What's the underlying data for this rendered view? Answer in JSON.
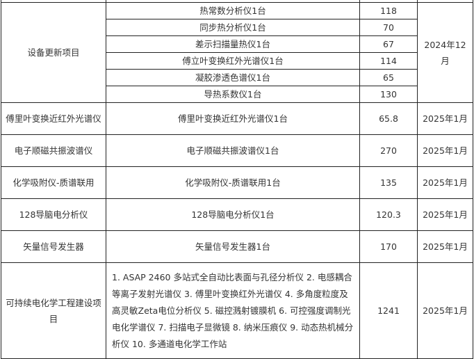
{
  "group1": {
    "project": "设备更新项目",
    "date": "2024年12月",
    "items": [
      {
        "name": "热常数分析仪1台",
        "amount": "118"
      },
      {
        "name": "同步热分析仪1台",
        "amount": "70"
      },
      {
        "name": "差示扫描量热仪1台",
        "amount": "67"
      },
      {
        "name": "傅立叶变换红外光谱仪1台",
        "amount": "114"
      },
      {
        "name": "凝胶渗透色谱仪1台",
        "amount": "65"
      },
      {
        "name": "导热系数仪1台",
        "amount": "130"
      }
    ]
  },
  "rows": [
    {
      "project": "傅里叶变换近红外光谱仪",
      "content": "傅里叶变换近红外光谱仪1台",
      "amount": "65.8",
      "date": "2025年1月"
    },
    {
      "project": "电子顺磁共振波谱仪",
      "content": "电子顺磁共振波谱仪1台",
      "amount": "270",
      "date": "2025年1月"
    },
    {
      "project": "化学吸附仪-质谱联用",
      "content": "化学吸附仪-质谱联用1台",
      "amount": "135",
      "date": "2025年1月"
    },
    {
      "project": "128导脑电分析仪",
      "content": "128导脑电分析仪1台",
      "amount": "120.3",
      "date": "2025年1月"
    },
    {
      "project": "矢量信号发生器",
      "content": "矢量信号发生器1台",
      "amount": "170",
      "date": "2025年1月"
    }
  ],
  "last": {
    "project": "可持续电化学工程建设项目",
    "content": "1. ASAP 2460 多站式全自动比表面与孔径分析仪 2. 电感耦合等离子发射光谱仪 3. 傅里叶变换红外光谱仪 4. 多角度粒度及高灵敏Zeta电位分析仪 5. 磁控溅射镀膜机 6. 可控强度调制光电化学谱仪 7. 扫描电子显微镜 8. 纳米压痕仪 9. 动态热机械分析仪 10. 多通道电化学工作站",
    "amount": "1241",
    "date": "2025年1月"
  }
}
